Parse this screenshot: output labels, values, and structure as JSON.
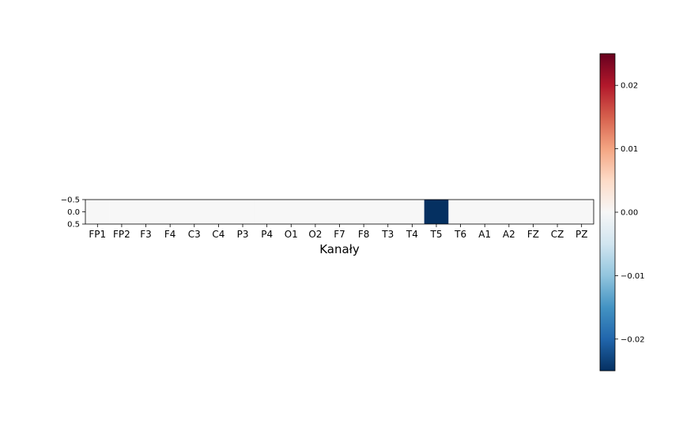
{
  "chart_data": {
    "type": "heatmap",
    "title": "",
    "xlabel": "Kanały",
    "ylabel": "",
    "categories": [
      "FP1",
      "FP2",
      "F3",
      "F4",
      "C3",
      "C4",
      "P3",
      "P4",
      "O1",
      "O2",
      "F7",
      "F8",
      "T3",
      "T4",
      "T5",
      "T6",
      "A1",
      "A2",
      "FZ",
      "CZ",
      "PZ"
    ],
    "values": [
      0,
      0,
      0,
      0,
      0,
      0,
      0,
      0,
      0,
      0,
      0,
      0,
      0,
      0,
      -0.025,
      0,
      0,
      0,
      0,
      0,
      0
    ],
    "y_ticks": [
      -0.5,
      0.0,
      0.5
    ],
    "y_tick_labels": [
      "−0.5",
      "0.0",
      "0.5"
    ],
    "colormap": "RdBu_r",
    "colorbar": {
      "vmin": -0.025,
      "vmax": 0.025,
      "ticks": [
        -0.02,
        -0.01,
        0.0,
        0.01,
        0.02
      ],
      "tick_labels": [
        "−0.02",
        "−0.01",
        "0.00",
        "0.01",
        "0.02"
      ]
    },
    "grid": false
  }
}
